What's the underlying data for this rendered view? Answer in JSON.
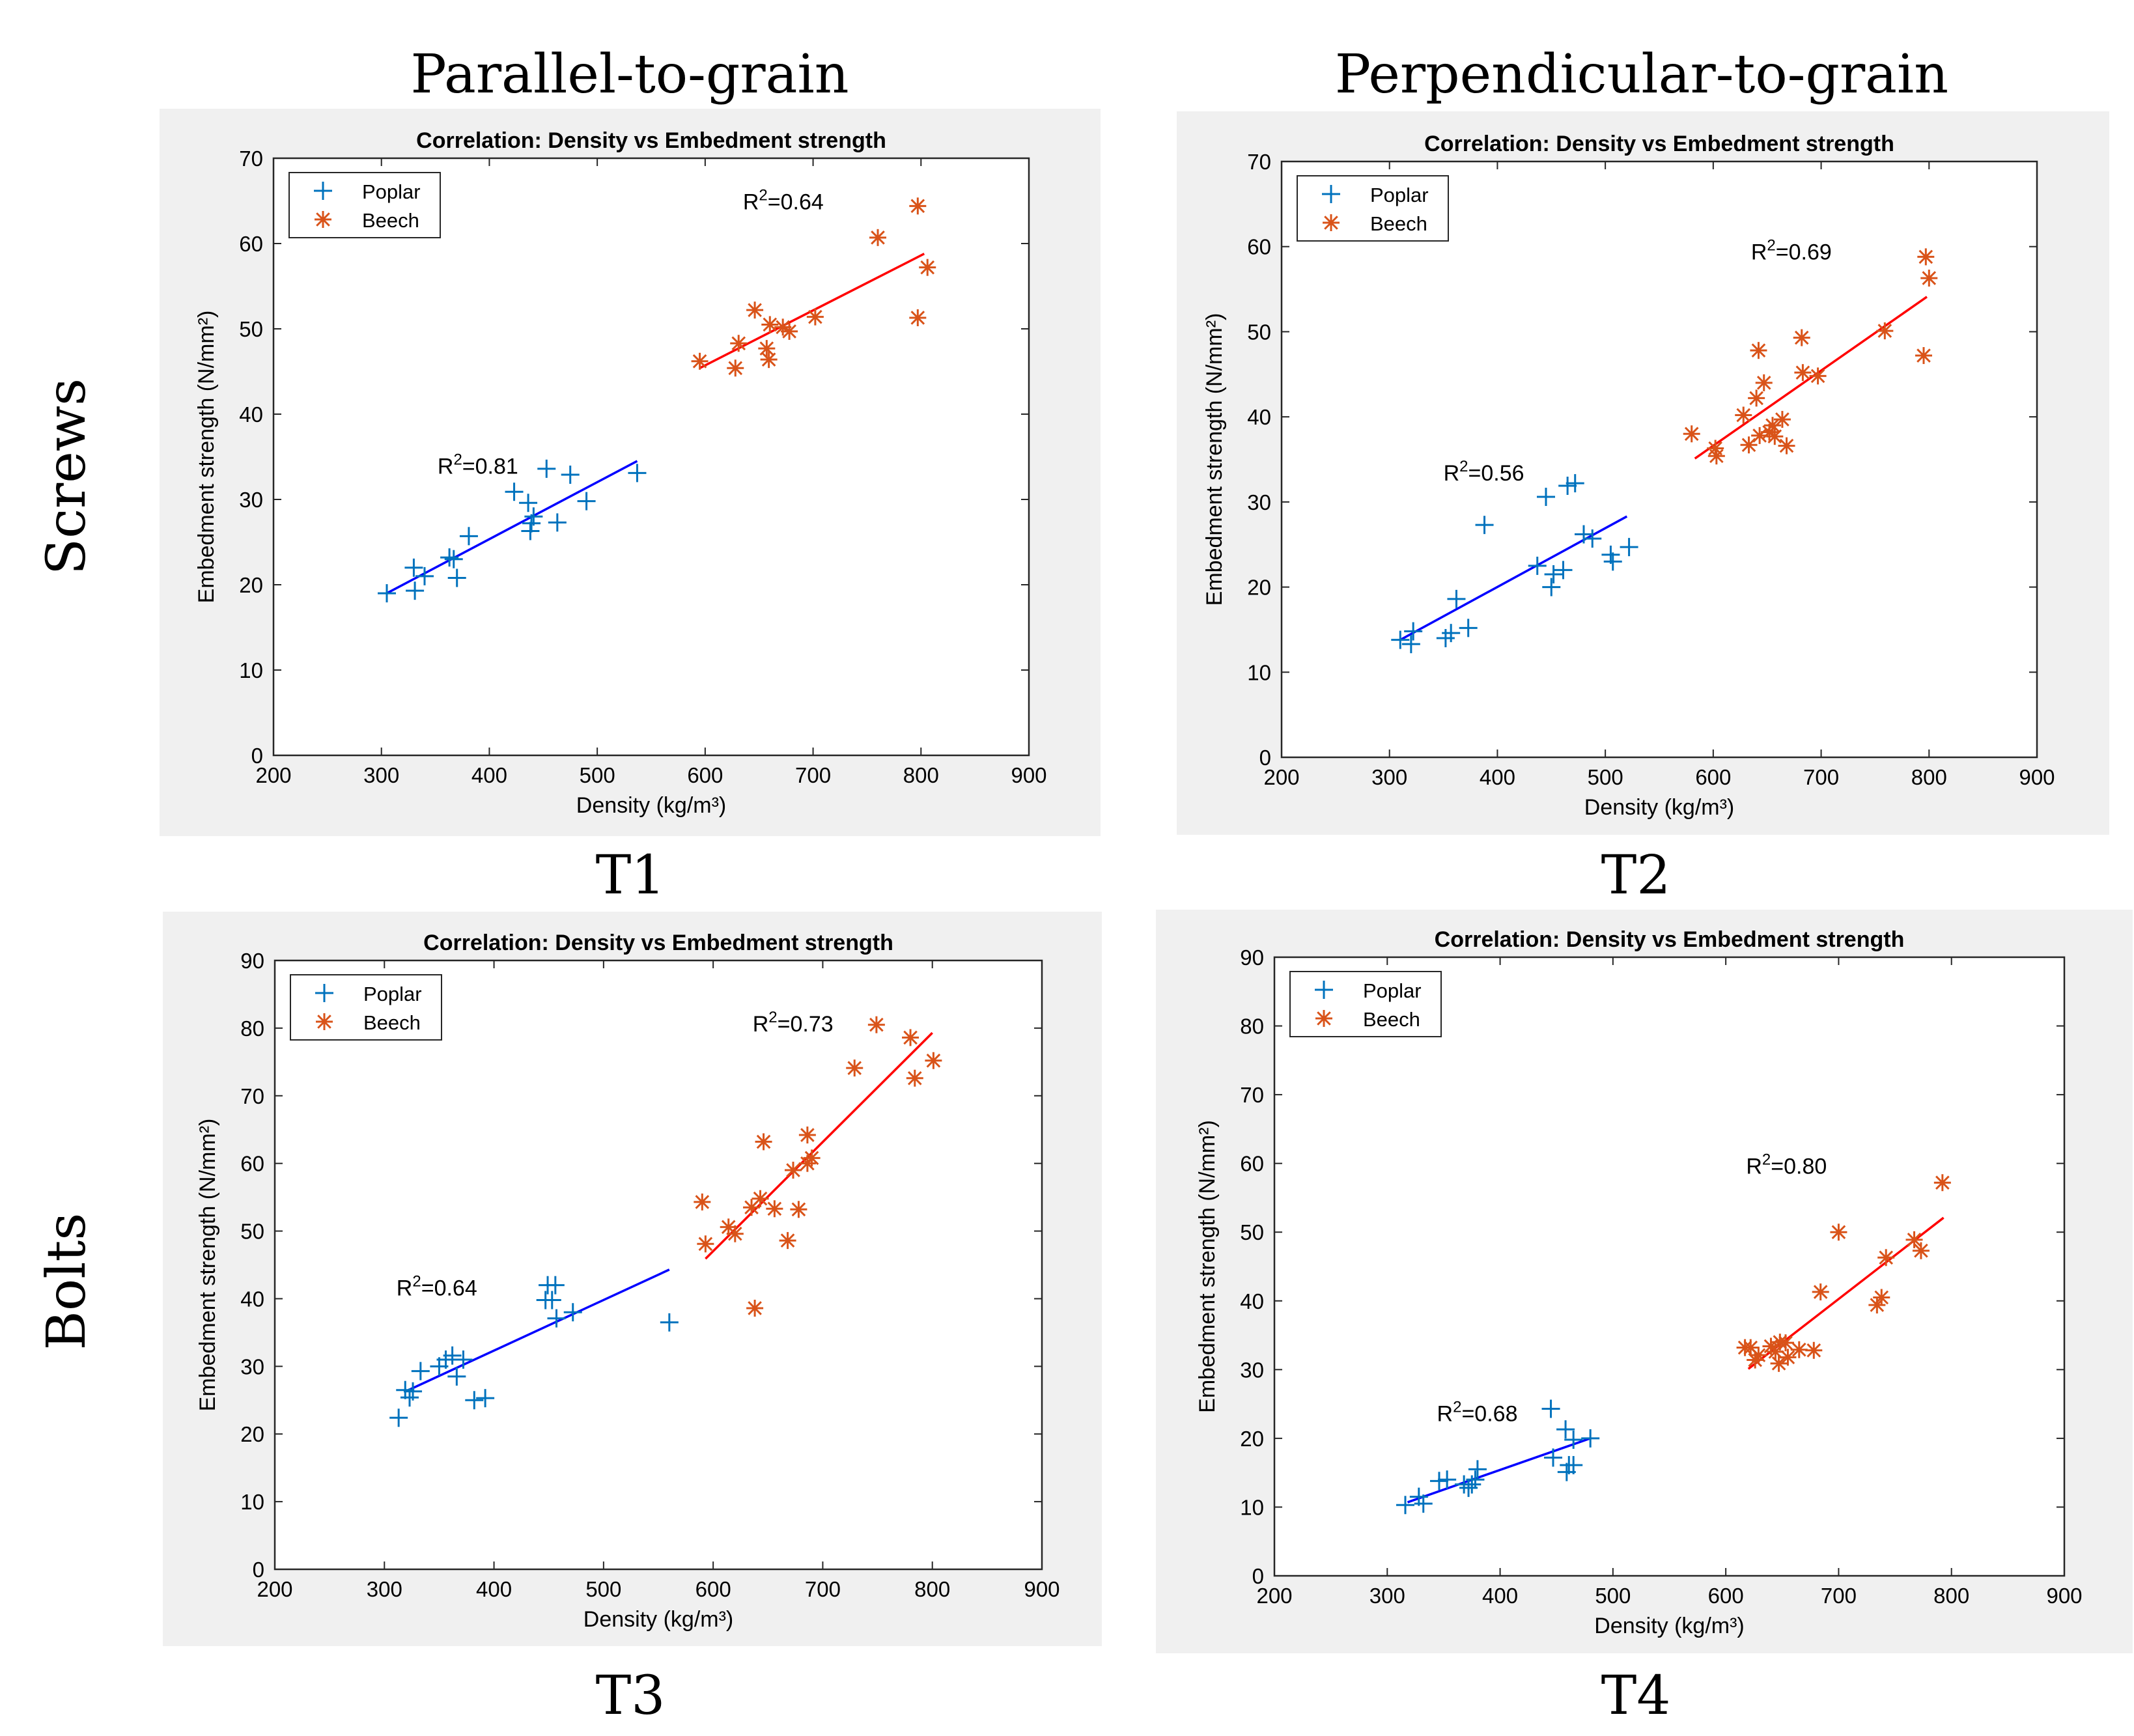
{
  "figure": {
    "column_headers": [
      "Parallel-to-grain",
      "Perpendicular-to-grain"
    ],
    "row_labels": [
      "Screws",
      "Bolts"
    ]
  },
  "colors": {
    "panel_bg": "#f0f0f0",
    "axes_bg": "#ffffff",
    "poplar_marker": "#0072bd",
    "beech_marker": "#d95319",
    "poplar_fit": "#0000ff",
    "beech_fit": "#ff0000",
    "axis": "#262626"
  },
  "chart_data": [
    {
      "type": "scatter",
      "label": "T1",
      "title": "Correlation: Density vs Embedment strength",
      "xlabel": "Density (kg/m³)",
      "ylabel": "Embedment strength (N/mm²)",
      "xlim": [
        200,
        900
      ],
      "ylim": [
        0,
        70
      ],
      "xticks": [
        200,
        300,
        400,
        500,
        600,
        700,
        800,
        900
      ],
      "yticks": [
        0,
        10,
        20,
        30,
        40,
        50,
        60,
        70
      ],
      "legend_position": "top-left",
      "series": [
        {
          "name": "Poplar",
          "marker": "+",
          "r2_label": "R²=0.81",
          "r2_at": [
            352,
            33
          ],
          "points": [
            [
              305,
              19
            ],
            [
              330,
              22
            ],
            [
              331,
              19.3
            ],
            [
              340,
              21
            ],
            [
              363,
              23.2
            ],
            [
              367,
              23
            ],
            [
              370,
              20.8
            ],
            [
              381,
              25.7
            ],
            [
              423,
              30.9
            ],
            [
              436,
              29.6
            ],
            [
              438,
              26.3
            ],
            [
              439,
              27.2
            ],
            [
              441,
              28
            ],
            [
              453,
              33.6
            ],
            [
              463,
              27.3
            ],
            [
              475,
              32.9
            ],
            [
              490,
              29.8
            ],
            [
              537,
              33.1
            ]
          ],
          "fit": [
            [
              305,
              19
            ],
            [
              537,
              34.5
            ]
          ]
        },
        {
          "name": "Beech",
          "marker": "*",
          "r2_label": "R²=0.64",
          "r2_at": [
            635,
            64
          ],
          "points": [
            [
              595,
              46.2
            ],
            [
              628,
              45.4
            ],
            [
              631,
              48.3
            ],
            [
              646,
              52.2
            ],
            [
              657,
              47.7
            ],
            [
              659,
              46.4
            ],
            [
              660,
              50.5
            ],
            [
              672,
              50.2
            ],
            [
              678,
              49.7
            ],
            [
              702,
              51.4
            ],
            [
              760,
              60.7
            ],
            [
              797,
              64.4
            ],
            [
              797,
              51.3
            ],
            [
              806,
              57.2
            ]
          ],
          "fit": [
            [
              595,
              45.4
            ],
            [
              803,
              58.8
            ]
          ]
        }
      ]
    },
    {
      "type": "scatter",
      "label": "T2",
      "title": "Correlation: Density vs Embedment strength",
      "xlabel": "Density (kg/m³)",
      "ylabel": "Embedment strength (N/mm²)",
      "xlim": [
        200,
        900
      ],
      "ylim": [
        0,
        70
      ],
      "xticks": [
        200,
        300,
        400,
        500,
        600,
        700,
        800,
        900
      ],
      "yticks": [
        0,
        10,
        20,
        30,
        40,
        50,
        60,
        70
      ],
      "legend_position": "top-left",
      "series": [
        {
          "name": "Poplar",
          "marker": "+",
          "r2_label": "R²=0.56",
          "r2_at": [
            350,
            32.5
          ],
          "points": [
            [
              310,
              13.8
            ],
            [
              320,
              13.3
            ],
            [
              322,
              14.8
            ],
            [
              352,
              14
            ],
            [
              357,
              14.6
            ],
            [
              362,
              18.6
            ],
            [
              373,
              15.2
            ],
            [
              388,
              27.3
            ],
            [
              437,
              22.5
            ],
            [
              445,
              30.6
            ],
            [
              450,
              20
            ],
            [
              452,
              21.5
            ],
            [
              461,
              22
            ],
            [
              465,
              31.9
            ],
            [
              472,
              32.2
            ],
            [
              480,
              26.2
            ],
            [
              488,
              25.7
            ],
            [
              505,
              23.8
            ],
            [
              507,
              23
            ],
            [
              522,
              24.7
            ]
          ],
          "fit": [
            [
              310,
              13.8
            ],
            [
              520,
              28.3
            ]
          ]
        },
        {
          "name": "Beech",
          "marker": "*",
          "r2_label": "R²=0.69",
          "r2_at": [
            635,
            58.5
          ],
          "points": [
            [
              580,
              38
            ],
            [
              602,
              36.3
            ],
            [
              603,
              35.4
            ],
            [
              628,
              40.2
            ],
            [
              633,
              36.7
            ],
            [
              640,
              42.2
            ],
            [
              642,
              47.8
            ],
            [
              643,
              37.8
            ],
            [
              647,
              44
            ],
            [
              652,
              38.2
            ],
            [
              655,
              39
            ],
            [
              657,
              37.7
            ],
            [
              664,
              39.7
            ],
            [
              668,
              36.6
            ],
            [
              682,
              49.3
            ],
            [
              683,
              45.2
            ],
            [
              697,
              44.8
            ],
            [
              759,
              50.1
            ],
            [
              795,
              47.2
            ],
            [
              797,
              58.8
            ],
            [
              800,
              56.3
            ]
          ],
          "fit": [
            [
              583,
              35.1
            ],
            [
              798,
              54.1
            ]
          ]
        }
      ]
    },
    {
      "type": "scatter",
      "label": "T3",
      "title": "Correlation: Density vs Embedment strength",
      "xlabel": "Density (kg/m³)",
      "ylabel": "Embedment strength (N/mm²)",
      "xlim": [
        200,
        900
      ],
      "ylim": [
        0,
        90
      ],
      "xticks": [
        200,
        300,
        400,
        500,
        600,
        700,
        800,
        900
      ],
      "yticks": [
        0,
        10,
        20,
        30,
        40,
        50,
        60,
        70,
        80,
        90
      ],
      "legend_position": "top-left",
      "series": [
        {
          "name": "Poplar",
          "marker": "+",
          "r2_label": "R²=0.64",
          "r2_at": [
            311,
            40.5
          ],
          "points": [
            [
              313,
              22.4
            ],
            [
              319,
              26.5
            ],
            [
              323,
              25.4
            ],
            [
              326,
              26.3
            ],
            [
              333,
              29.3
            ],
            [
              350,
              30
            ],
            [
              356,
              31
            ],
            [
              362,
              31.6
            ],
            [
              366,
              28.5
            ],
            [
              372,
              31
            ],
            [
              382,
              25
            ],
            [
              392,
              25.3
            ],
            [
              447,
              39.8
            ],
            [
              449,
              42
            ],
            [
              453,
              39.8
            ],
            [
              456,
              42
            ],
            [
              457,
              37.1
            ],
            [
              472,
              38
            ],
            [
              560,
              36.5
            ]
          ],
          "fit": [
            [
              318,
              26.2
            ],
            [
              560,
              44.3
            ]
          ]
        },
        {
          "name": "Beech",
          "marker": "*",
          "r2_label": "R²=0.73",
          "r2_at": [
            636,
            79.5
          ],
          "points": [
            [
              590,
              54.3
            ],
            [
              593,
              48.1
            ],
            [
              614,
              50.6
            ],
            [
              620,
              49.6
            ],
            [
              635,
              53.5
            ],
            [
              638,
              38.6
            ],
            [
              643,
              54.8
            ],
            [
              646,
              63.2
            ],
            [
              656,
              53.3
            ],
            [
              668,
              48.6
            ],
            [
              673,
              59
            ],
            [
              678,
              53.2
            ],
            [
              686,
              64.2
            ],
            [
              690,
              60.8
            ],
            [
              686,
              60
            ],
            [
              729,
              74.1
            ],
            [
              749,
              80.5
            ],
            [
              780,
              78.6
            ],
            [
              784,
              72.6
            ],
            [
              801,
              75.2
            ]
          ],
          "fit": [
            [
              593,
              45.9
            ],
            [
              800,
              79.3
            ]
          ]
        }
      ]
    },
    {
      "type": "scatter",
      "label": "T4",
      "title": "Correlation: Density vs Embedment strength",
      "xlabel": "Density (kg/m³)",
      "ylabel": "Embedment strength (N/mm²)",
      "xlim": [
        200,
        900
      ],
      "ylim": [
        0,
        90
      ],
      "xticks": [
        200,
        300,
        400,
        500,
        600,
        700,
        800,
        900
      ],
      "yticks": [
        0,
        10,
        20,
        30,
        40,
        50,
        60,
        70,
        80,
        90
      ],
      "legend_position": "top-left",
      "series": [
        {
          "name": "Poplar",
          "marker": "+",
          "r2_label": "R²=0.68",
          "r2_at": [
            344,
            22.5
          ],
          "points": [
            [
              316,
              10.3
            ],
            [
              328,
              11.5
            ],
            [
              332,
              10.5
            ],
            [
              346,
              13.8
            ],
            [
              353,
              14
            ],
            [
              368,
              13.3
            ],
            [
              372,
              12.8
            ],
            [
              375,
              13.3
            ],
            [
              378,
              14
            ],
            [
              380,
              15.5
            ],
            [
              445,
              24.3
            ],
            [
              447,
              17.2
            ],
            [
              458,
              21.3
            ],
            [
              459,
              15.1
            ],
            [
              461,
              16.1
            ],
            [
              465,
              19.8
            ],
            [
              465,
              16.1
            ],
            [
              480,
              20
            ]
          ],
          "fit": [
            [
              318,
              10.7
            ],
            [
              480,
              20
            ]
          ]
        },
        {
          "name": "Beech",
          "marker": "*",
          "r2_label": "R²=0.80",
          "r2_at": [
            618,
            58.5
          ],
          "points": [
            [
              617,
              33.2
            ],
            [
              622,
              33.2
            ],
            [
              626,
              31.4
            ],
            [
              629,
              32.1
            ],
            [
              640,
              33.4
            ],
            [
              644,
              32.6
            ],
            [
              647,
              30.9
            ],
            [
              648,
              34
            ],
            [
              653,
              33.9
            ],
            [
              655,
              31.8
            ],
            [
              665,
              32.9
            ],
            [
              678,
              32.8
            ],
            [
              684,
              41.3
            ],
            [
              700,
              50
            ],
            [
              734,
              39.4
            ],
            [
              738,
              40.5
            ],
            [
              742,
              46.3
            ],
            [
              767,
              48.9
            ],
            [
              773,
              47.3
            ],
            [
              792,
              57.2
            ]
          ],
          "fit": [
            [
              620,
              30.1
            ],
            [
              793,
              52.1
            ]
          ]
        }
      ]
    }
  ]
}
